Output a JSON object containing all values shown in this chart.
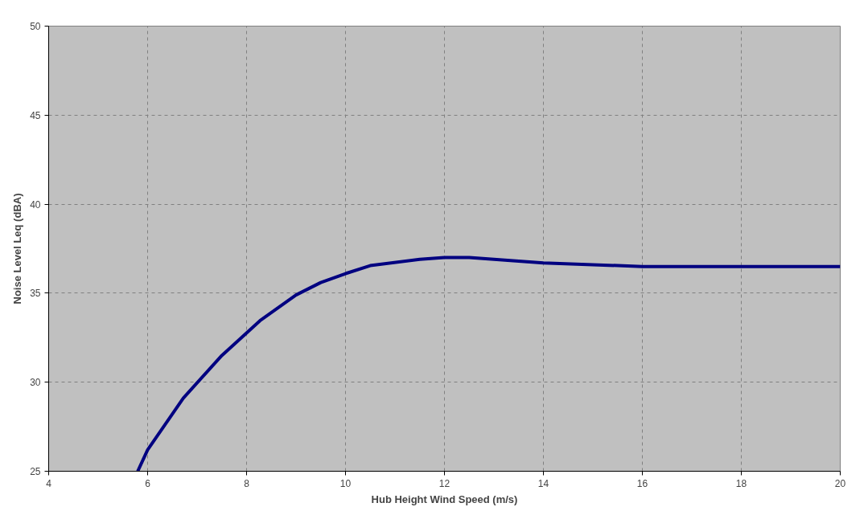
{
  "chart_data": {
    "type": "line",
    "xlabel": "Hub Height Wind Speed (m/s)",
    "ylabel": "Noise Level Leq (dBA)",
    "x": [
      5.8,
      6.0,
      6.72,
      7.5,
      8.27,
      9.0,
      9.5,
      10.0,
      10.5,
      11.5,
      12.0,
      12.5,
      14.0,
      16.0,
      20.0
    ],
    "series": [
      {
        "color": "#000080",
        "values": [
          25.0,
          26.2,
          29.1,
          31.5,
          33.45,
          34.9,
          35.6,
          36.1,
          36.55,
          36.9,
          37.0,
          37.0,
          36.7,
          36.5,
          36.5
        ]
      }
    ],
    "xlim": [
      4,
      20
    ],
    "ylim": [
      25,
      50
    ],
    "xticks": [
      4,
      6,
      8,
      10,
      12,
      14,
      16,
      18,
      20
    ],
    "yticks": [
      25,
      30,
      35,
      40,
      45,
      50
    ],
    "grid": true,
    "line_style": "solid",
    "marker": "none"
  }
}
